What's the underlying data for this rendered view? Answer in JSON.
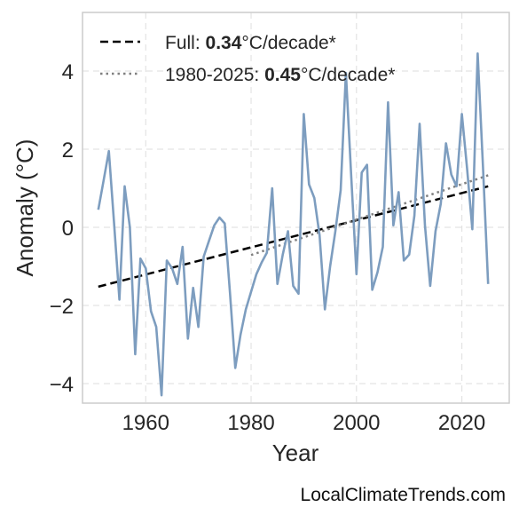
{
  "chart_data": {
    "type": "line",
    "title": "",
    "xlabel": "Year",
    "ylabel": "Anomaly (°C)",
    "xlim": [
      1948,
      2029
    ],
    "ylim": [
      -4.5,
      5.5
    ],
    "xticks": [
      1960,
      1980,
      2000,
      2020
    ],
    "yticks": [
      -4,
      -2,
      0,
      2,
      4
    ],
    "ytick_labels": [
      "−4",
      "−2",
      "0",
      "2",
      "4"
    ],
    "grid": true,
    "legend_position": "top-left",
    "series": [
      {
        "x": [
          1951,
          1952,
          1953,
          1954,
          1955,
          1956,
          1957,
          1958,
          1959,
          1960,
          1961,
          1962,
          1963,
          1964,
          1965,
          1966,
          1967,
          1968,
          1969,
          1970,
          1971,
          1972,
          1973,
          1974,
          1975,
          1976,
          1977,
          1978,
          1979,
          1980,
          1981,
          1982,
          1983,
          1984,
          1985,
          1986,
          1987,
          1988,
          1989,
          1990,
          1991,
          1992,
          1993,
          1994,
          1995,
          1996,
          1997,
          1998,
          1999,
          2000,
          2001,
          2002,
          2003,
          2004,
          2005,
          2006,
          2007,
          2008,
          2009,
          2010,
          2011,
          2012,
          2013,
          2014,
          2015,
          2016,
          2017,
          2018,
          2019,
          2020,
          2021,
          2022,
          2023,
          2024,
          2025
        ],
        "values": [
          0.45,
          1.2,
          1.95,
          0.1,
          -1.85,
          1.05,
          0.0,
          -3.25,
          -0.8,
          -1.05,
          -2.15,
          -2.55,
          -4.3,
          -0.85,
          -1.05,
          -1.45,
          -0.5,
          -2.85,
          -1.55,
          -2.55,
          -0.75,
          -0.35,
          0.05,
          0.25,
          0.1,
          -1.7,
          -3.6,
          -2.75,
          -2.1,
          -1.65,
          -1.2,
          -0.9,
          -0.65,
          1.0,
          -1.45,
          -0.7,
          -0.1,
          -1.5,
          -1.7,
          2.9,
          1.1,
          0.75,
          -0.2,
          -2.1,
          -1.0,
          -0.1,
          0.95,
          3.95,
          1.3,
          -1.2,
          1.4,
          1.6,
          -1.6,
          -1.15,
          -0.5,
          3.2,
          0.05,
          0.9,
          -0.85,
          -0.7,
          0.3,
          2.65,
          0.05,
          -1.5,
          -0.1,
          0.6,
          2.15,
          1.35,
          1.05,
          2.9,
          1.5,
          -0.05,
          4.45,
          1.6,
          -1.45
        ],
        "color": "#7d9dbf"
      }
    ],
    "trendlines": [
      {
        "name": "Full",
        "x": [
          1951,
          2025
        ],
        "values": [
          -1.52,
          1.05
        ],
        "style": "dashed",
        "color": "#000000"
      },
      {
        "name": "1980-2025",
        "x": [
          1980,
          2025
        ],
        "values": [
          -0.71,
          1.33
        ],
        "style": "dotted",
        "color": "#808080"
      }
    ],
    "legend": [
      {
        "prefix": "Full: ",
        "value": "0.34",
        "suffix": "°C/decade*",
        "style": "dashed",
        "color": "#000000"
      },
      {
        "prefix": "1980-2025: ",
        "value": "0.45",
        "suffix": "°C/decade*",
        "style": "dotted",
        "color": "#808080"
      }
    ]
  },
  "source_label": "LocalClimateTrends.com"
}
